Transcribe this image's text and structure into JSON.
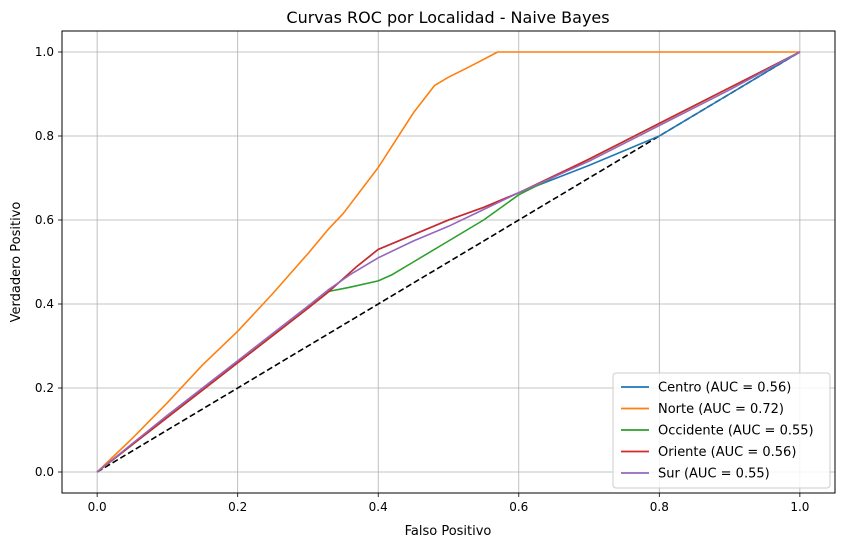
{
  "chart_data": {
    "type": "line",
    "title": "Curvas ROC por Localidad - Naive Bayes",
    "xlabel": "Falso Positivo",
    "ylabel": "Verdadero Positivo",
    "xlim": [
      -0.05,
      1.05
    ],
    "ylim": [
      -0.05,
      1.05
    ],
    "xticks": [
      0.0,
      0.2,
      0.4,
      0.6,
      0.8,
      1.0
    ],
    "yticks": [
      0.0,
      0.2,
      0.4,
      0.6,
      0.8,
      1.0
    ],
    "xtick_labels": [
      "0.0",
      "0.2",
      "0.4",
      "0.6",
      "0.8",
      "1.0"
    ],
    "ytick_labels": [
      "0.0",
      "0.2",
      "0.4",
      "0.6",
      "0.8",
      "1.0"
    ],
    "grid": true,
    "legend_position": "lower-right",
    "series": [
      {
        "name": "Centro (AUC = 0.56)",
        "color": "#1f77b4",
        "x": [
          0.0,
          0.1,
          0.2,
          0.3,
          0.33,
          0.37,
          0.4,
          0.45,
          0.5,
          0.55,
          0.6,
          0.7,
          0.8,
          0.9,
          1.0
        ],
        "y": [
          0.0,
          0.13,
          0.26,
          0.39,
          0.43,
          0.49,
          0.53,
          0.565,
          0.6,
          0.63,
          0.665,
          0.73,
          0.8,
          0.9,
          1.0
        ]
      },
      {
        "name": "Norte (AUC = 0.72)",
        "color": "#ff7f0e",
        "x": [
          0.0,
          0.05,
          0.1,
          0.15,
          0.2,
          0.25,
          0.3,
          0.33,
          0.35,
          0.4,
          0.45,
          0.48,
          0.5,
          0.53,
          0.57,
          0.6,
          0.8,
          1.0
        ],
        "y": [
          0.0,
          0.08,
          0.165,
          0.255,
          0.335,
          0.425,
          0.52,
          0.58,
          0.615,
          0.725,
          0.855,
          0.92,
          0.94,
          0.965,
          1.0,
          1.0,
          1.0,
          1.0
        ]
      },
      {
        "name": "Occidente (AUC = 0.55)",
        "color": "#2ca02c",
        "x": [
          0.0,
          0.1,
          0.2,
          0.3,
          0.33,
          0.36,
          0.4,
          0.42,
          0.45,
          0.5,
          0.55,
          0.6,
          0.7,
          0.8,
          0.9,
          1.0
        ],
        "y": [
          0.0,
          0.13,
          0.26,
          0.39,
          0.43,
          0.44,
          0.455,
          0.47,
          0.5,
          0.55,
          0.6,
          0.66,
          0.745,
          0.83,
          0.915,
          1.0
        ]
      },
      {
        "name": "Oriente (AUC = 0.56)",
        "color": "#d62728",
        "x": [
          0.0,
          0.1,
          0.2,
          0.3,
          0.33,
          0.37,
          0.4,
          0.45,
          0.5,
          0.55,
          0.6,
          0.7,
          0.8,
          0.9,
          1.0
        ],
        "y": [
          0.0,
          0.13,
          0.26,
          0.39,
          0.43,
          0.49,
          0.53,
          0.565,
          0.6,
          0.63,
          0.665,
          0.745,
          0.83,
          0.915,
          1.0
        ]
      },
      {
        "name": "Sur (AUC = 0.55)",
        "color": "#9467bd",
        "x": [
          0.0,
          0.1,
          0.2,
          0.3,
          0.33,
          0.36,
          0.4,
          0.45,
          0.5,
          0.55,
          0.6,
          0.7,
          0.8,
          0.9,
          1.0
        ],
        "y": [
          0.0,
          0.135,
          0.265,
          0.395,
          0.435,
          0.47,
          0.51,
          0.55,
          0.585,
          0.625,
          0.665,
          0.74,
          0.825,
          0.91,
          1.0
        ]
      }
    ],
    "reference_line": {
      "color": "#000000",
      "style": "dashed",
      "x": [
        0.0,
        1.0
      ],
      "y": [
        0.0,
        1.0
      ]
    }
  }
}
